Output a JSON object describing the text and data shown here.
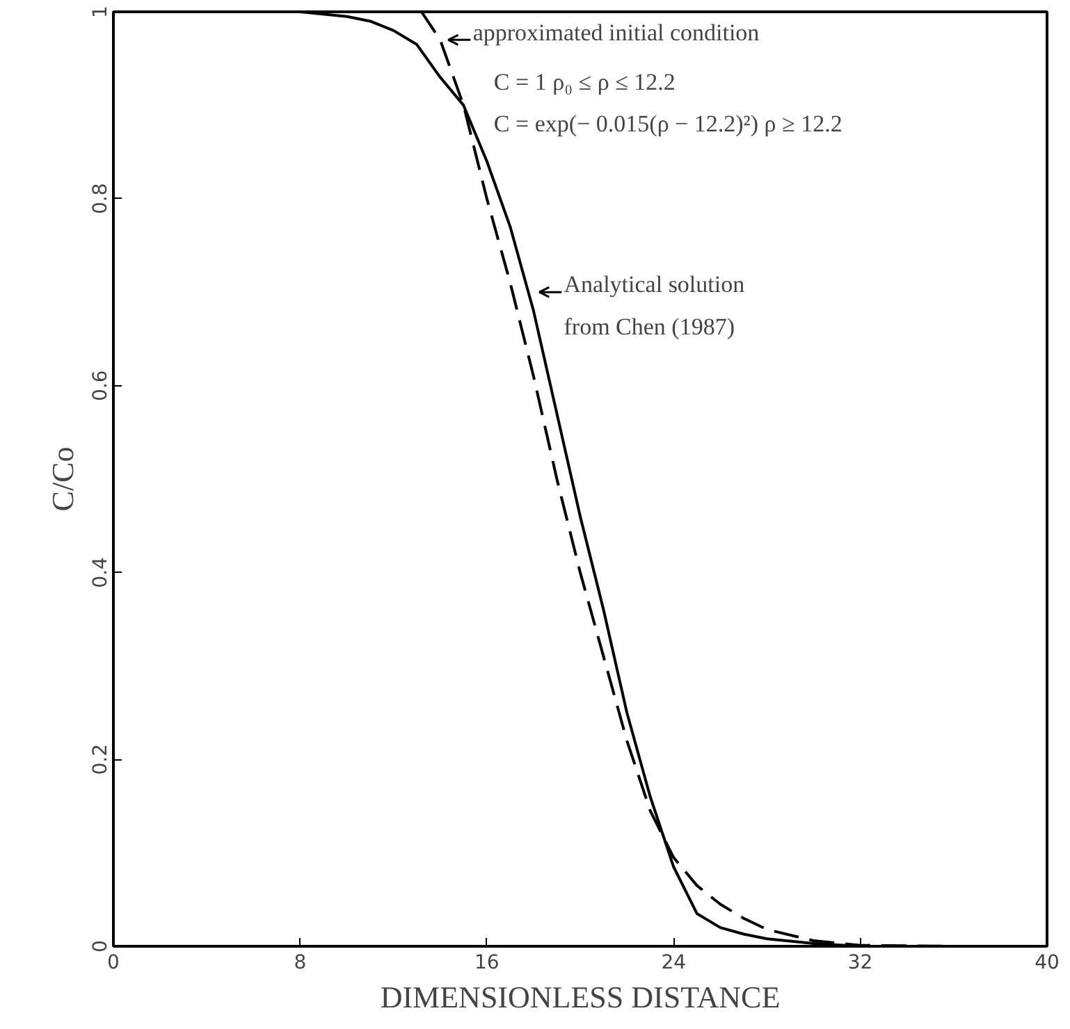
{
  "chart_data": {
    "type": "line",
    "xlabel": "DIMENSIONLESS DISTANCE",
    "ylabel": "C/Co",
    "xlim": [
      0,
      40
    ],
    "ylim": [
      0,
      1
    ],
    "xticks": [
      0,
      8,
      16,
      24,
      32,
      40
    ],
    "yticks": [
      0,
      0.2,
      0.4,
      0.6,
      0.8,
      1
    ],
    "grid": false,
    "marker": "none",
    "series": [
      {
        "color": "#000000",
        "line_style": "solid",
        "x": [
          0,
          8,
          10,
          11,
          12,
          13,
          14,
          15,
          16,
          17,
          18,
          19,
          20,
          21,
          22,
          23,
          24,
          25,
          26,
          27,
          28,
          30,
          32,
          36,
          40
        ],
        "values": [
          1,
          1,
          0.995,
          0.99,
          0.98,
          0.965,
          0.93,
          0.9,
          0.84,
          0.77,
          0.68,
          0.57,
          0.46,
          0.36,
          0.25,
          0.16,
          0.085,
          0.035,
          0.02,
          0.013,
          0.008,
          0.003,
          0,
          0,
          0
        ]
      },
      {
        "color": "#000000",
        "line_style": "dashed",
        "x": [
          13.2,
          14,
          15,
          16,
          17,
          18,
          19,
          20,
          21,
          22,
          23,
          24,
          25,
          26,
          27,
          28,
          30,
          32,
          36,
          40
        ],
        "values": [
          1,
          0.97,
          0.9,
          0.8,
          0.71,
          0.61,
          0.5,
          0.4,
          0.31,
          0.22,
          0.145,
          0.095,
          0.065,
          0.045,
          0.03,
          0.018,
          0.006,
          0.001,
          0,
          0
        ]
      }
    ],
    "annotations": [
      {
        "text": "approximated initial condition",
        "x": 14.2,
        "y": 0.97
      },
      "C = 1        ρ₀ ≤ ρ ≤ 12.2",
      "C = exp(− 0.015(ρ − 12.2)²)  ρ ≥ 12.2",
      {
        "text": "Analytical solution\nfrom Chen (1987)",
        "x": 18.1,
        "y": 0.7
      }
    ]
  }
}
